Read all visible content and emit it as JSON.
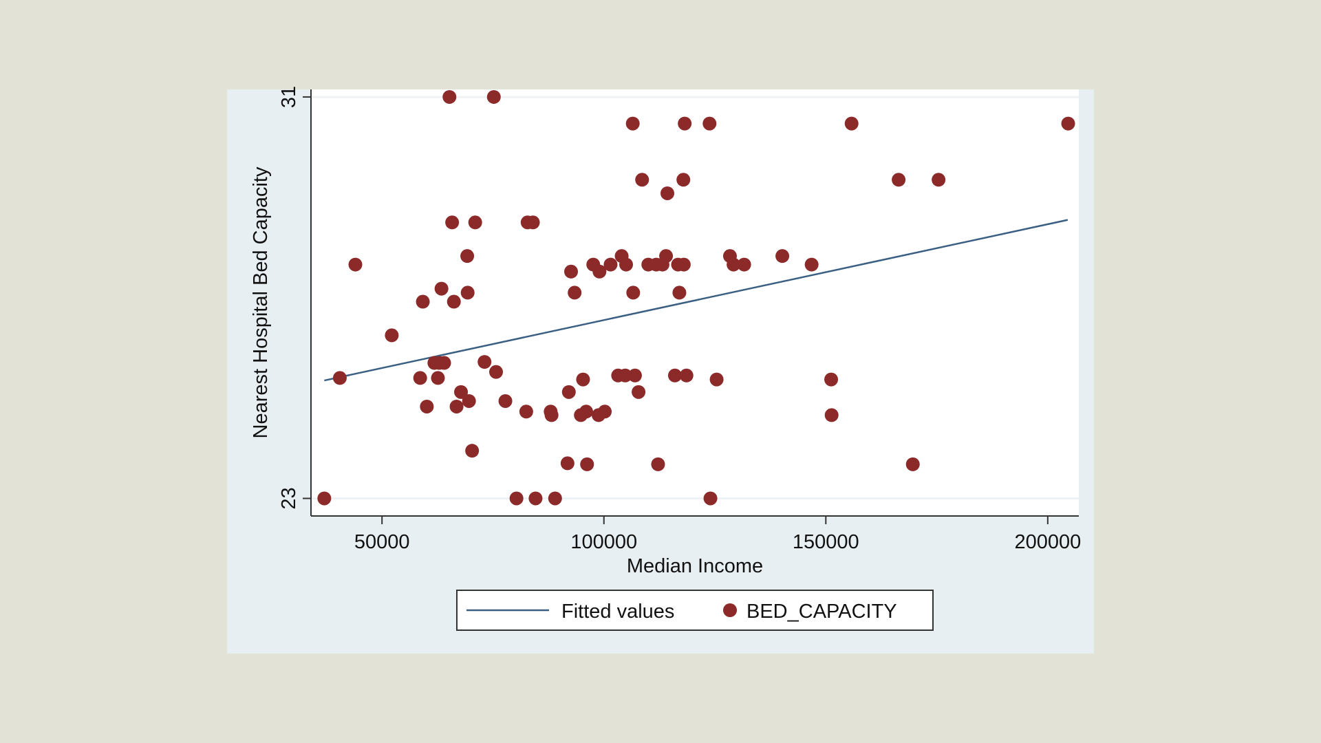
{
  "chart_data": {
    "type": "scatter",
    "xlabel": "Median Income",
    "ylabel": "Nearest Hospital Bed Capacity",
    "xlim": [
      34000,
      207000
    ],
    "ylim": [
      22.65,
      31.15
    ],
    "xticks": [
      {
        "value": 50000,
        "label": "50000"
      },
      {
        "value": 100000,
        "label": "100000"
      },
      {
        "value": 150000,
        "label": "150000"
      },
      {
        "value": 200000,
        "label": "200000"
      }
    ],
    "yticks": [
      {
        "value": 23,
        "label": "23"
      },
      {
        "value": 31,
        "label": "31"
      }
    ],
    "grid": "y-major",
    "legend": {
      "placement": "bottom",
      "entries": [
        "Fitted values",
        "BED_CAPACITY"
      ]
    },
    "colors": {
      "points": "#8c2a2a",
      "fit_line": "#3a5f82",
      "plot_background": "#ffffff",
      "outer_background": "#e8eff2",
      "page_background": "#e2e2d6"
    },
    "series": [
      {
        "name": "Fitted values",
        "type": "line",
        "points": [
          [
            37000,
            25.35
          ],
          [
            204500,
            28.55
          ]
        ]
      },
      {
        "name": "BED_CAPACITY",
        "type": "scatter",
        "points": [
          [
            37000,
            23.0
          ],
          [
            40500,
            25.4
          ],
          [
            44000,
            27.66
          ],
          [
            52200,
            26.25
          ],
          [
            58600,
            25.4
          ],
          [
            59200,
            26.92
          ],
          [
            60100,
            24.83
          ],
          [
            61800,
            25.7
          ],
          [
            62600,
            25.4
          ],
          [
            62900,
            25.7
          ],
          [
            63400,
            27.18
          ],
          [
            64000,
            25.7
          ],
          [
            65200,
            31.0
          ],
          [
            65800,
            28.5
          ],
          [
            66200,
            26.92
          ],
          [
            66800,
            24.83
          ],
          [
            67800,
            25.12
          ],
          [
            69200,
            27.83
          ],
          [
            69300,
            27.1
          ],
          [
            69600,
            24.94
          ],
          [
            70300,
            23.95
          ],
          [
            71000,
            28.5
          ],
          [
            73100,
            25.72
          ],
          [
            75200,
            31.0
          ],
          [
            75700,
            25.52
          ],
          [
            77800,
            24.94
          ],
          [
            80300,
            23.0
          ],
          [
            82500,
            24.73
          ],
          [
            82800,
            28.5
          ],
          [
            84000,
            28.5
          ],
          [
            84600,
            23.0
          ],
          [
            88000,
            24.73
          ],
          [
            88200,
            24.66
          ],
          [
            89000,
            23.0
          ],
          [
            91800,
            23.7
          ],
          [
            92100,
            25.12
          ],
          [
            92600,
            27.52
          ],
          [
            93400,
            27.1
          ],
          [
            94800,
            24.66
          ],
          [
            95300,
            25.37
          ],
          [
            96000,
            24.73
          ],
          [
            96200,
            23.68
          ],
          [
            97600,
            27.66
          ],
          [
            98800,
            24.66
          ],
          [
            99000,
            27.52
          ],
          [
            100200,
            24.73
          ],
          [
            101500,
            27.66
          ],
          [
            103200,
            25.45
          ],
          [
            104000,
            27.83
          ],
          [
            104800,
            25.45
          ],
          [
            105000,
            27.66
          ],
          [
            106500,
            30.47
          ],
          [
            106600,
            27.1
          ],
          [
            107000,
            25.45
          ],
          [
            107800,
            25.12
          ],
          [
            108600,
            29.35
          ],
          [
            110000,
            27.66
          ],
          [
            111800,
            27.66
          ],
          [
            112200,
            23.68
          ],
          [
            113200,
            27.66
          ],
          [
            114000,
            27.83
          ],
          [
            114300,
            29.08
          ],
          [
            116000,
            25.45
          ],
          [
            116700,
            27.66
          ],
          [
            117000,
            27.1
          ],
          [
            117900,
            29.35
          ],
          [
            118000,
            27.66
          ],
          [
            118200,
            30.47
          ],
          [
            118600,
            25.45
          ],
          [
            123800,
            30.47
          ],
          [
            124000,
            23.0
          ],
          [
            125400,
            25.37
          ],
          [
            128400,
            27.83
          ],
          [
            129200,
            27.66
          ],
          [
            131600,
            27.66
          ],
          [
            140200,
            27.83
          ],
          [
            146800,
            27.66
          ],
          [
            151200,
            25.37
          ],
          [
            151300,
            24.66
          ],
          [
            155800,
            30.47
          ],
          [
            166400,
            29.35
          ],
          [
            169600,
            23.68
          ],
          [
            175400,
            29.35
          ],
          [
            204600,
            30.47
          ]
        ]
      }
    ]
  }
}
